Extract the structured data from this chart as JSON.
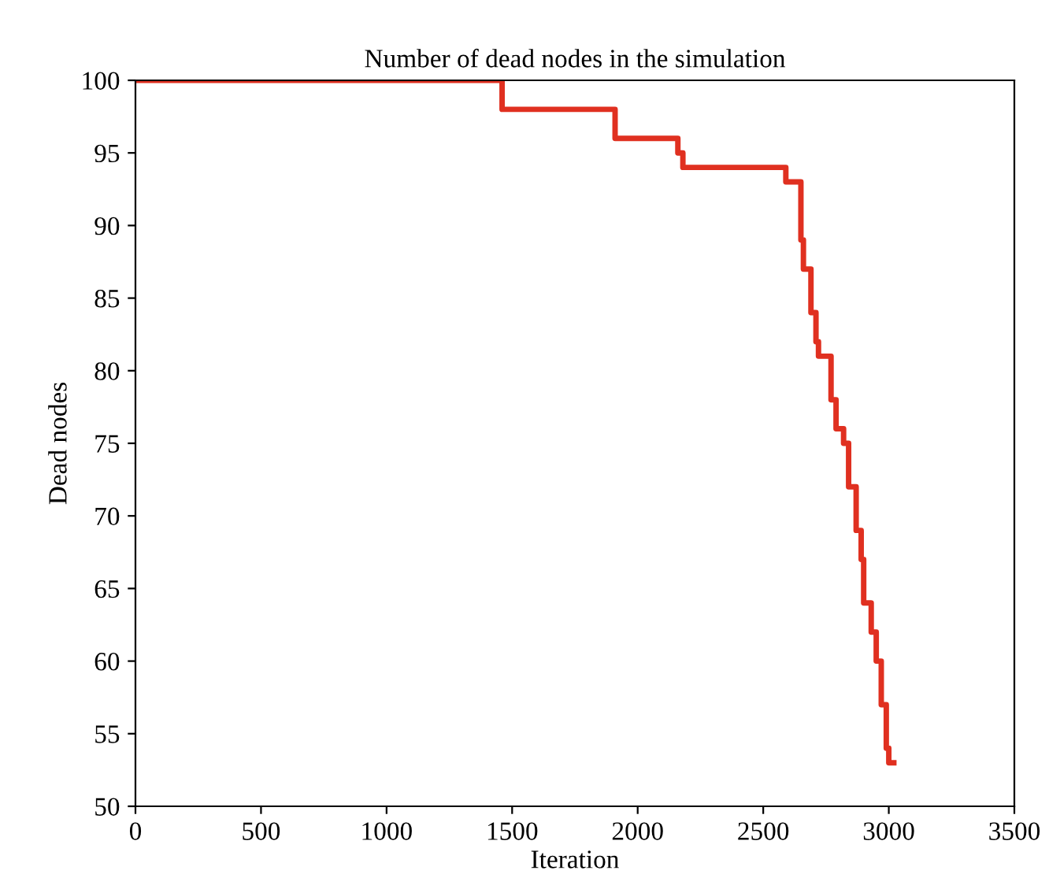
{
  "chart_data": {
    "type": "step",
    "title": "Number of dead nodes in the simulation",
    "xlabel": "Iteration",
    "ylabel": "Dead nodes",
    "x": [
      0,
      1460,
      1910,
      2160,
      2180,
      2590,
      2650,
      2660,
      2690,
      2710,
      2720,
      2770,
      2790,
      2820,
      2840,
      2870,
      2890,
      2900,
      2930,
      2950,
      2970,
      2990,
      3000,
      3020
    ],
    "series": [
      {
        "color": "#e03020",
        "values": [
          100,
          98,
          96,
          95,
          94,
          93,
          89,
          87,
          84,
          82,
          81,
          78,
          76,
          75,
          72,
          69,
          67,
          64,
          62,
          60,
          57,
          54,
          53,
          53
        ]
      }
    ],
    "xlim": [
      0,
      3500
    ],
    "xticks": [
      0,
      500,
      1000,
      1500,
      2000,
      2500,
      3000,
      3500
    ],
    "ylim": [
      50,
      100
    ],
    "yticks": [
      50,
      55,
      60,
      65,
      70,
      75,
      80,
      85,
      90,
      95,
      100
    ],
    "grid": false,
    "legend": false
  }
}
